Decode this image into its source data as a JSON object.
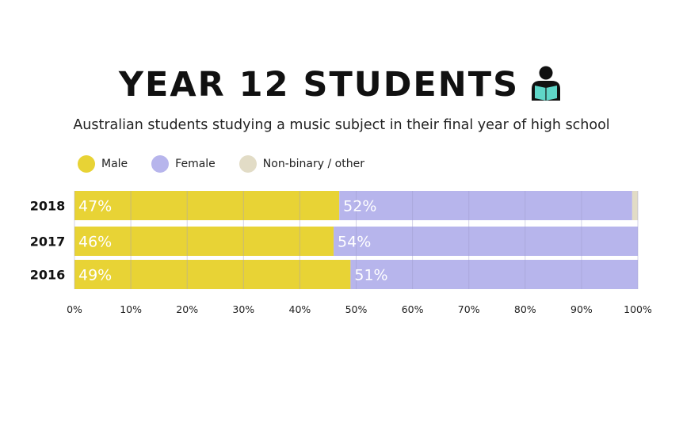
{
  "title": "YEAR 12 STUDENTS",
  "subtitle": "Australian students studying a music subject in their final year of high school",
  "icon": "reading-student-icon",
  "colors": {
    "male": "#e8d335",
    "female": "#b7b5ec",
    "other": "#e2dcc6",
    "grid": "#9e9cc9",
    "icon_book": "#5fd6c8"
  },
  "chart_data": {
    "type": "bar",
    "orientation": "horizontal",
    "stacked": true,
    "categories": [
      "2018",
      "2017",
      "2016"
    ],
    "series": [
      {
        "name": "Male",
        "values": [
          47,
          46,
          49
        ],
        "labels": [
          "47%",
          "46%",
          "49%"
        ],
        "color": "#e8d335"
      },
      {
        "name": "Female",
        "values": [
          52,
          54,
          51
        ],
        "labels": [
          "52%",
          "54%",
          "51%"
        ],
        "color": "#b7b5ec"
      },
      {
        "name": "Non-binary / other",
        "values": [
          1,
          0,
          0
        ],
        "labels": [
          "",
          "",
          ""
        ],
        "color": "#e2dcc6"
      }
    ],
    "xlim": [
      0,
      100
    ],
    "xticks": [
      "0%",
      "10%",
      "20%",
      "30%",
      "40%",
      "50%",
      "60%",
      "70%",
      "80%",
      "90%",
      "100%"
    ],
    "grid": true,
    "legend": "top-left"
  }
}
